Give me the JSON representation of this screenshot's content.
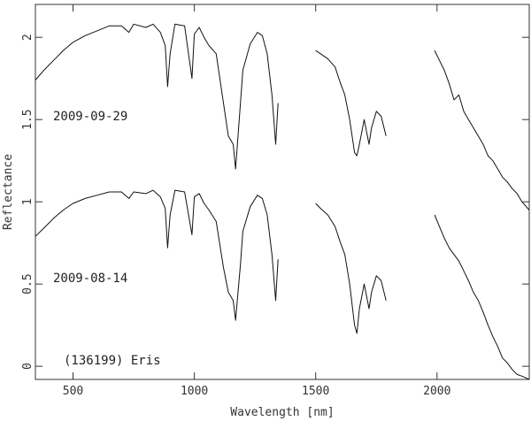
{
  "chart_data": {
    "type": "line",
    "title": "",
    "xlabel": "Wavelength [nm]",
    "ylabel": "Reflectance",
    "xlim": [
      345,
      2380
    ],
    "ylim": [
      -0.08,
      2.2
    ],
    "x_ticks": [
      500,
      1000,
      1500,
      2000
    ],
    "y_ticks": [
      0,
      0.5,
      1,
      1.5,
      2
    ],
    "y_tick_labels": [
      "0",
      "0.5",
      "1",
      "1.5",
      "2"
    ],
    "grid": false,
    "annotations": {
      "upper_label": "2009-09-29",
      "lower_label": "2009-08-14",
      "object_label": "(136199) Eris"
    },
    "series": [
      {
        "segments": [
          {
            "x": [
              345,
              380,
              420,
              460,
              500,
              550,
              600,
              650,
              700,
              730,
              750,
              800,
              830,
              860,
              880,
              890,
              900,
              920,
              960,
              990,
              1000,
              1020,
              1040,
              1060,
              1090,
              1120,
              1140,
              1160,
              1170,
              1190,
              1200,
              1230,
              1260,
              1280,
              1300,
              1320,
              1335,
              1345
            ],
            "y": [
              1.74,
              1.8,
              1.86,
              1.92,
              1.97,
              2.01,
              2.04,
              2.07,
              2.07,
              2.03,
              2.08,
              2.06,
              2.08,
              2.03,
              1.95,
              1.7,
              1.9,
              2.08,
              2.07,
              1.75,
              2.02,
              2.06,
              2.0,
              1.95,
              1.9,
              1.6,
              1.4,
              1.35,
              1.2,
              1.6,
              1.8,
              1.96,
              2.03,
              2.01,
              1.9,
              1.65,
              1.35,
              1.6
            ]
          },
          {
            "x": [
              1500,
              1520,
              1550,
              1580,
              1600,
              1620,
              1640,
              1660,
              1670,
              1680,
              1700,
              1720,
              1730,
              1750,
              1770,
              1790
            ],
            "y": [
              1.92,
              1.9,
              1.87,
              1.82,
              1.73,
              1.65,
              1.5,
              1.3,
              1.28,
              1.35,
              1.5,
              1.35,
              1.45,
              1.55,
              1.52,
              1.4
            ]
          },
          {
            "x": [
              1990,
              2010,
              2030,
              2050,
              2070,
              2090,
              2110,
              2130,
              2150,
              2170,
              2190,
              2210,
              2230,
              2250,
              2270,
              2290,
              2310,
              2330,
              2350,
              2380
            ],
            "y": [
              1.92,
              1.86,
              1.8,
              1.72,
              1.62,
              1.65,
              1.55,
              1.5,
              1.45,
              1.4,
              1.35,
              1.28,
              1.25,
              1.2,
              1.15,
              1.12,
              1.08,
              1.05,
              1.0,
              0.95
            ]
          }
        ]
      },
      {
        "segments": [
          {
            "x": [
              345,
              380,
              420,
              460,
              500,
              550,
              600,
              650,
              700,
              730,
              750,
              800,
              830,
              860,
              880,
              890,
              900,
              920,
              960,
              990,
              1000,
              1020,
              1040,
              1060,
              1090,
              1120,
              1140,
              1160,
              1170,
              1190,
              1200,
              1230,
              1260,
              1280,
              1300,
              1320,
              1335,
              1345
            ],
            "y": [
              0.79,
              0.84,
              0.9,
              0.95,
              0.99,
              1.02,
              1.04,
              1.06,
              1.06,
              1.02,
              1.06,
              1.05,
              1.07,
              1.03,
              0.96,
              0.72,
              0.92,
              1.07,
              1.06,
              0.8,
              1.03,
              1.05,
              0.99,
              0.95,
              0.88,
              0.6,
              0.45,
              0.4,
              0.28,
              0.62,
              0.82,
              0.97,
              1.04,
              1.02,
              0.92,
              0.68,
              0.4,
              0.65
            ]
          },
          {
            "x": [
              1500,
              1520,
              1550,
              1580,
              1600,
              1620,
              1640,
              1660,
              1670,
              1680,
              1700,
              1720,
              1730,
              1750,
              1770,
              1790
            ],
            "y": [
              0.99,
              0.96,
              0.92,
              0.85,
              0.76,
              0.68,
              0.5,
              0.25,
              0.2,
              0.35,
              0.5,
              0.35,
              0.45,
              0.55,
              0.52,
              0.4
            ]
          },
          {
            "x": [
              1990,
              2010,
              2030,
              2050,
              2070,
              2090,
              2110,
              2130,
              2150,
              2170,
              2190,
              2210,
              2230,
              2250,
              2270,
              2290,
              2310,
              2330,
              2350,
              2380
            ],
            "y": [
              0.92,
              0.85,
              0.78,
              0.72,
              0.68,
              0.64,
              0.58,
              0.52,
              0.45,
              0.4,
              0.33,
              0.25,
              0.18,
              0.12,
              0.05,
              0.02,
              -0.02,
              -0.05,
              -0.06,
              -0.08
            ]
          }
        ]
      }
    ]
  }
}
